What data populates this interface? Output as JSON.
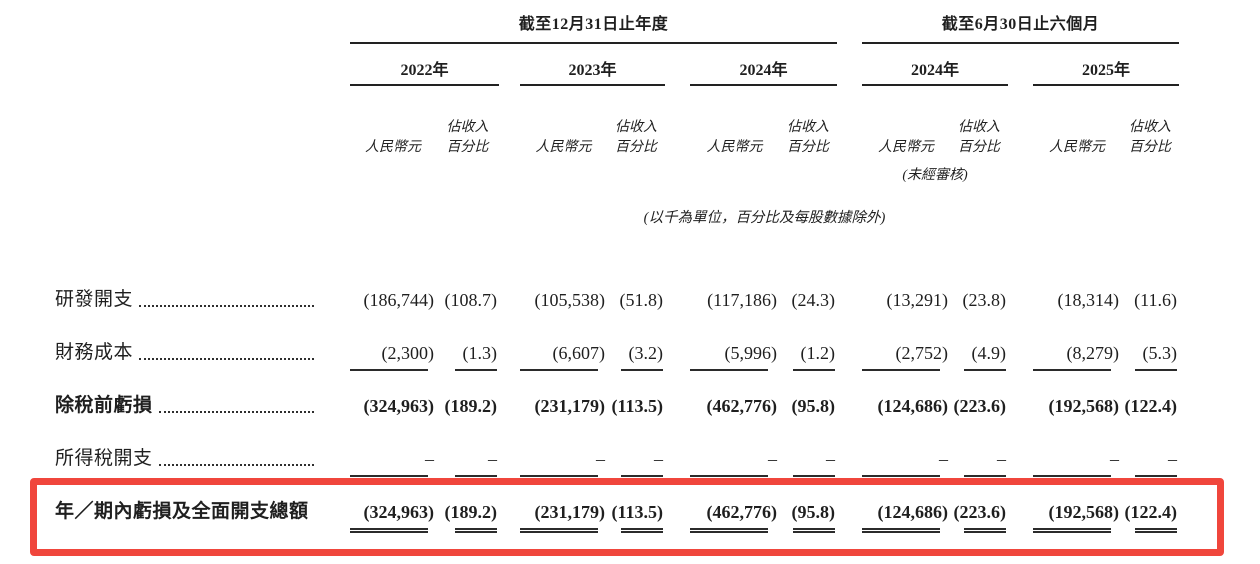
{
  "table": {
    "groups": [
      {
        "title": "截至12月31日止年度",
        "years": [
          "2022年",
          "2023年",
          "2024年"
        ]
      },
      {
        "title": "截至6月30日止六個月",
        "years": [
          "2024年",
          "2025年"
        ]
      }
    ],
    "col_headers": {
      "amount": "人民幣元",
      "pct_line1": "佔收入",
      "pct_line2": "百分比"
    },
    "unaudited": "(未經審核)",
    "note": "(以千為單位，百分比及每股數據除外)",
    "rows": [
      {
        "label": "研發開支",
        "bold": false,
        "rule": "none",
        "values": [
          "(186,744)",
          "(108.7)",
          "(105,538)",
          "(51.8)",
          "(117,186)",
          "(24.3)",
          "(13,291)",
          "(23.8)",
          "(18,314)",
          "(11.6)"
        ]
      },
      {
        "label": "財務成本",
        "bold": false,
        "rule": "single",
        "values": [
          "(2,300)",
          "(1.3)",
          "(6,607)",
          "(3.2)",
          "(5,996)",
          "(1.2)",
          "(2,752)",
          "(4.9)",
          "(8,279)",
          "(5.3)"
        ]
      },
      {
        "label": "除稅前虧損",
        "bold": true,
        "rule": "none",
        "values": [
          "(324,963)",
          "(189.2)",
          "(231,179)",
          "(113.5)",
          "(462,776)",
          "(95.8)",
          "(124,686)",
          "(223.6)",
          "(192,568)",
          "(122.4)"
        ]
      },
      {
        "label": "所得稅開支",
        "bold": false,
        "rule": "single",
        "values": [
          "–",
          "–",
          "–",
          "–",
          "–",
          "–",
          "–",
          "–",
          "–",
          "–"
        ]
      },
      {
        "label": "年／期內虧損及全面開支總額",
        "bold": true,
        "rule": "double",
        "highlighted": true,
        "values": [
          "(324,963)",
          "(189.2)",
          "(231,179)",
          "(113.5)",
          "(462,776)",
          "(95.8)",
          "(124,686)",
          "(223.6)",
          "(192,568)",
          "(122.4)"
        ]
      }
    ]
  },
  "colors": {
    "highlight_box": "#f0463c",
    "text": "#1f1f1f",
    "rule": "#2b2b2b"
  }
}
